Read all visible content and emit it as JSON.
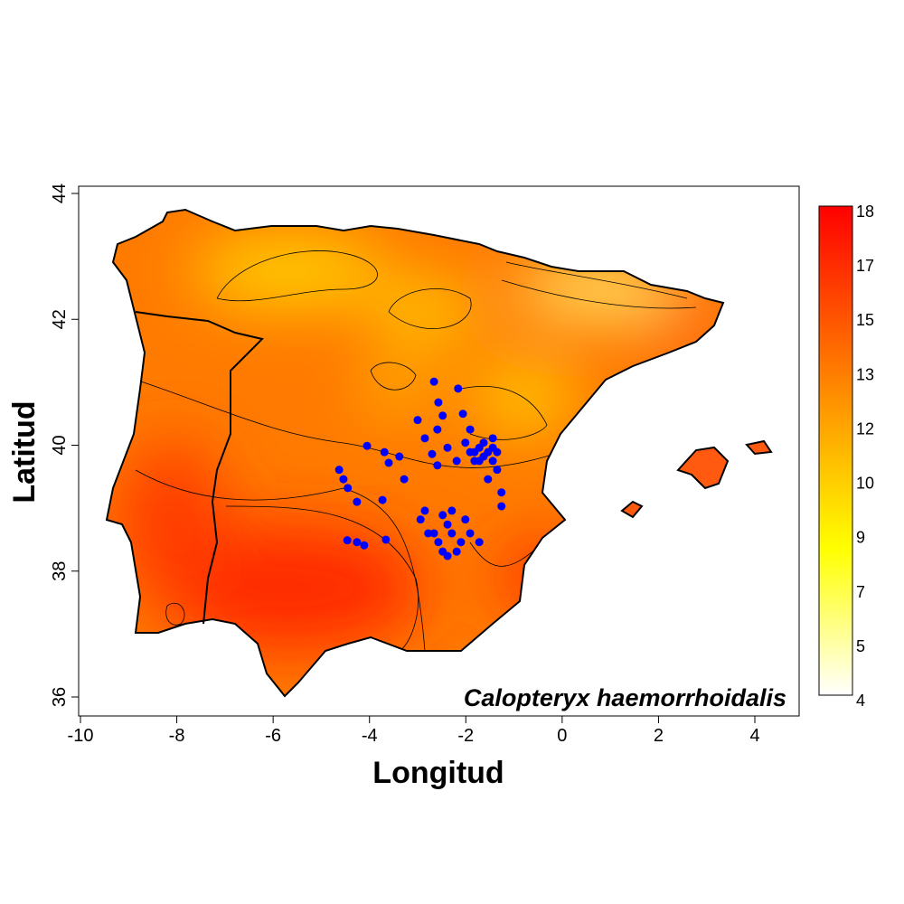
{
  "chart_data": {
    "type": "scatter",
    "map_type": "raster heatmap with contour lines and occurrence points",
    "annotation": "Calopteryx haemorrhoidalis",
    "xlabel": "Longitud",
    "ylabel": "Latitud",
    "xlim": [
      -10,
      4
    ],
    "ylim": [
      36,
      44
    ],
    "x_ticks": [
      "-10",
      "-8",
      "-6",
      "-4",
      "-2",
      "0",
      "2",
      "4"
    ],
    "y_ticks": [
      "36",
      "38",
      "40",
      "42",
      "44"
    ],
    "legend": {
      "placement": "right",
      "labels": [
        "18",
        "17",
        "15",
        "13",
        "12",
        "10",
        "9",
        "7",
        "5",
        "4"
      ],
      "range": [
        4,
        18
      ],
      "colors": {
        "low": "#ffffff",
        "mid": "#ffff00",
        "high": "#ff0000"
      }
    },
    "contour_levels": [
      "6",
      "8",
      "10",
      "12",
      "14",
      "16"
    ],
    "point_color": "#0000ff",
    "points": [
      [
        -2.66,
        41.01
      ],
      [
        -2.57,
        40.68
      ],
      [
        -2.48,
        40.47
      ],
      [
        -2.59,
        40.25
      ],
      [
        -2.16,
        40.9
      ],
      [
        -2.06,
        40.5
      ],
      [
        -1.91,
        40.25
      ],
      [
        -2.01,
        40.04
      ],
      [
        -1.82,
        39.89
      ],
      [
        -2.38,
        39.96
      ],
      [
        -2.19,
        39.75
      ],
      [
        -1.63,
        40.04
      ],
      [
        -1.54,
        39.89
      ],
      [
        -1.44,
        39.75
      ],
      [
        -1.35,
        39.61
      ],
      [
        -1.54,
        39.46
      ],
      [
        -1.26,
        39.25
      ],
      [
        -1.26,
        39.03
      ],
      [
        -2.85,
        40.11
      ],
      [
        -3.0,
        40.4
      ],
      [
        -2.7,
        39.86
      ],
      [
        -2.59,
        39.68
      ],
      [
        -4.05,
        39.99
      ],
      [
        -3.69,
        39.89
      ],
      [
        -3.6,
        39.72
      ],
      [
        -3.38,
        39.82
      ],
      [
        -3.28,
        39.46
      ],
      [
        -3.73,
        39.13
      ],
      [
        -4.63,
        39.61
      ],
      [
        -4.54,
        39.46
      ],
      [
        -4.45,
        39.32
      ],
      [
        -4.26,
        39.1
      ],
      [
        -4.46,
        38.49
      ],
      [
        -4.26,
        38.46
      ],
      [
        -4.11,
        38.41
      ],
      [
        -3.66,
        38.5
      ],
      [
        -2.85,
        38.96
      ],
      [
        -2.94,
        38.82
      ],
      [
        -2.66,
        38.6
      ],
      [
        -2.48,
        38.89
      ],
      [
        -2.38,
        38.74
      ],
      [
        -2.29,
        38.6
      ],
      [
        -2.1,
        38.46
      ],
      [
        -1.91,
        38.6
      ],
      [
        -1.72,
        38.46
      ],
      [
        -2.19,
        38.31
      ],
      [
        -2.57,
        38.46
      ],
      [
        -2.48,
        38.31
      ],
      [
        -2.38,
        38.24
      ],
      [
        -2.78,
        38.6
      ],
      [
        -1.72,
        39.75
      ],
      [
        -1.91,
        39.89
      ],
      [
        -2.01,
        38.82
      ],
      [
        -2.29,
        38.96
      ],
      [
        -1.72,
        39.96
      ],
      [
        -1.44,
        39.96
      ],
      [
        -1.35,
        39.89
      ],
      [
        -1.63,
        39.82
      ],
      [
        -1.82,
        39.75
      ],
      [
        -1.44,
        40.11
      ]
    ]
  }
}
